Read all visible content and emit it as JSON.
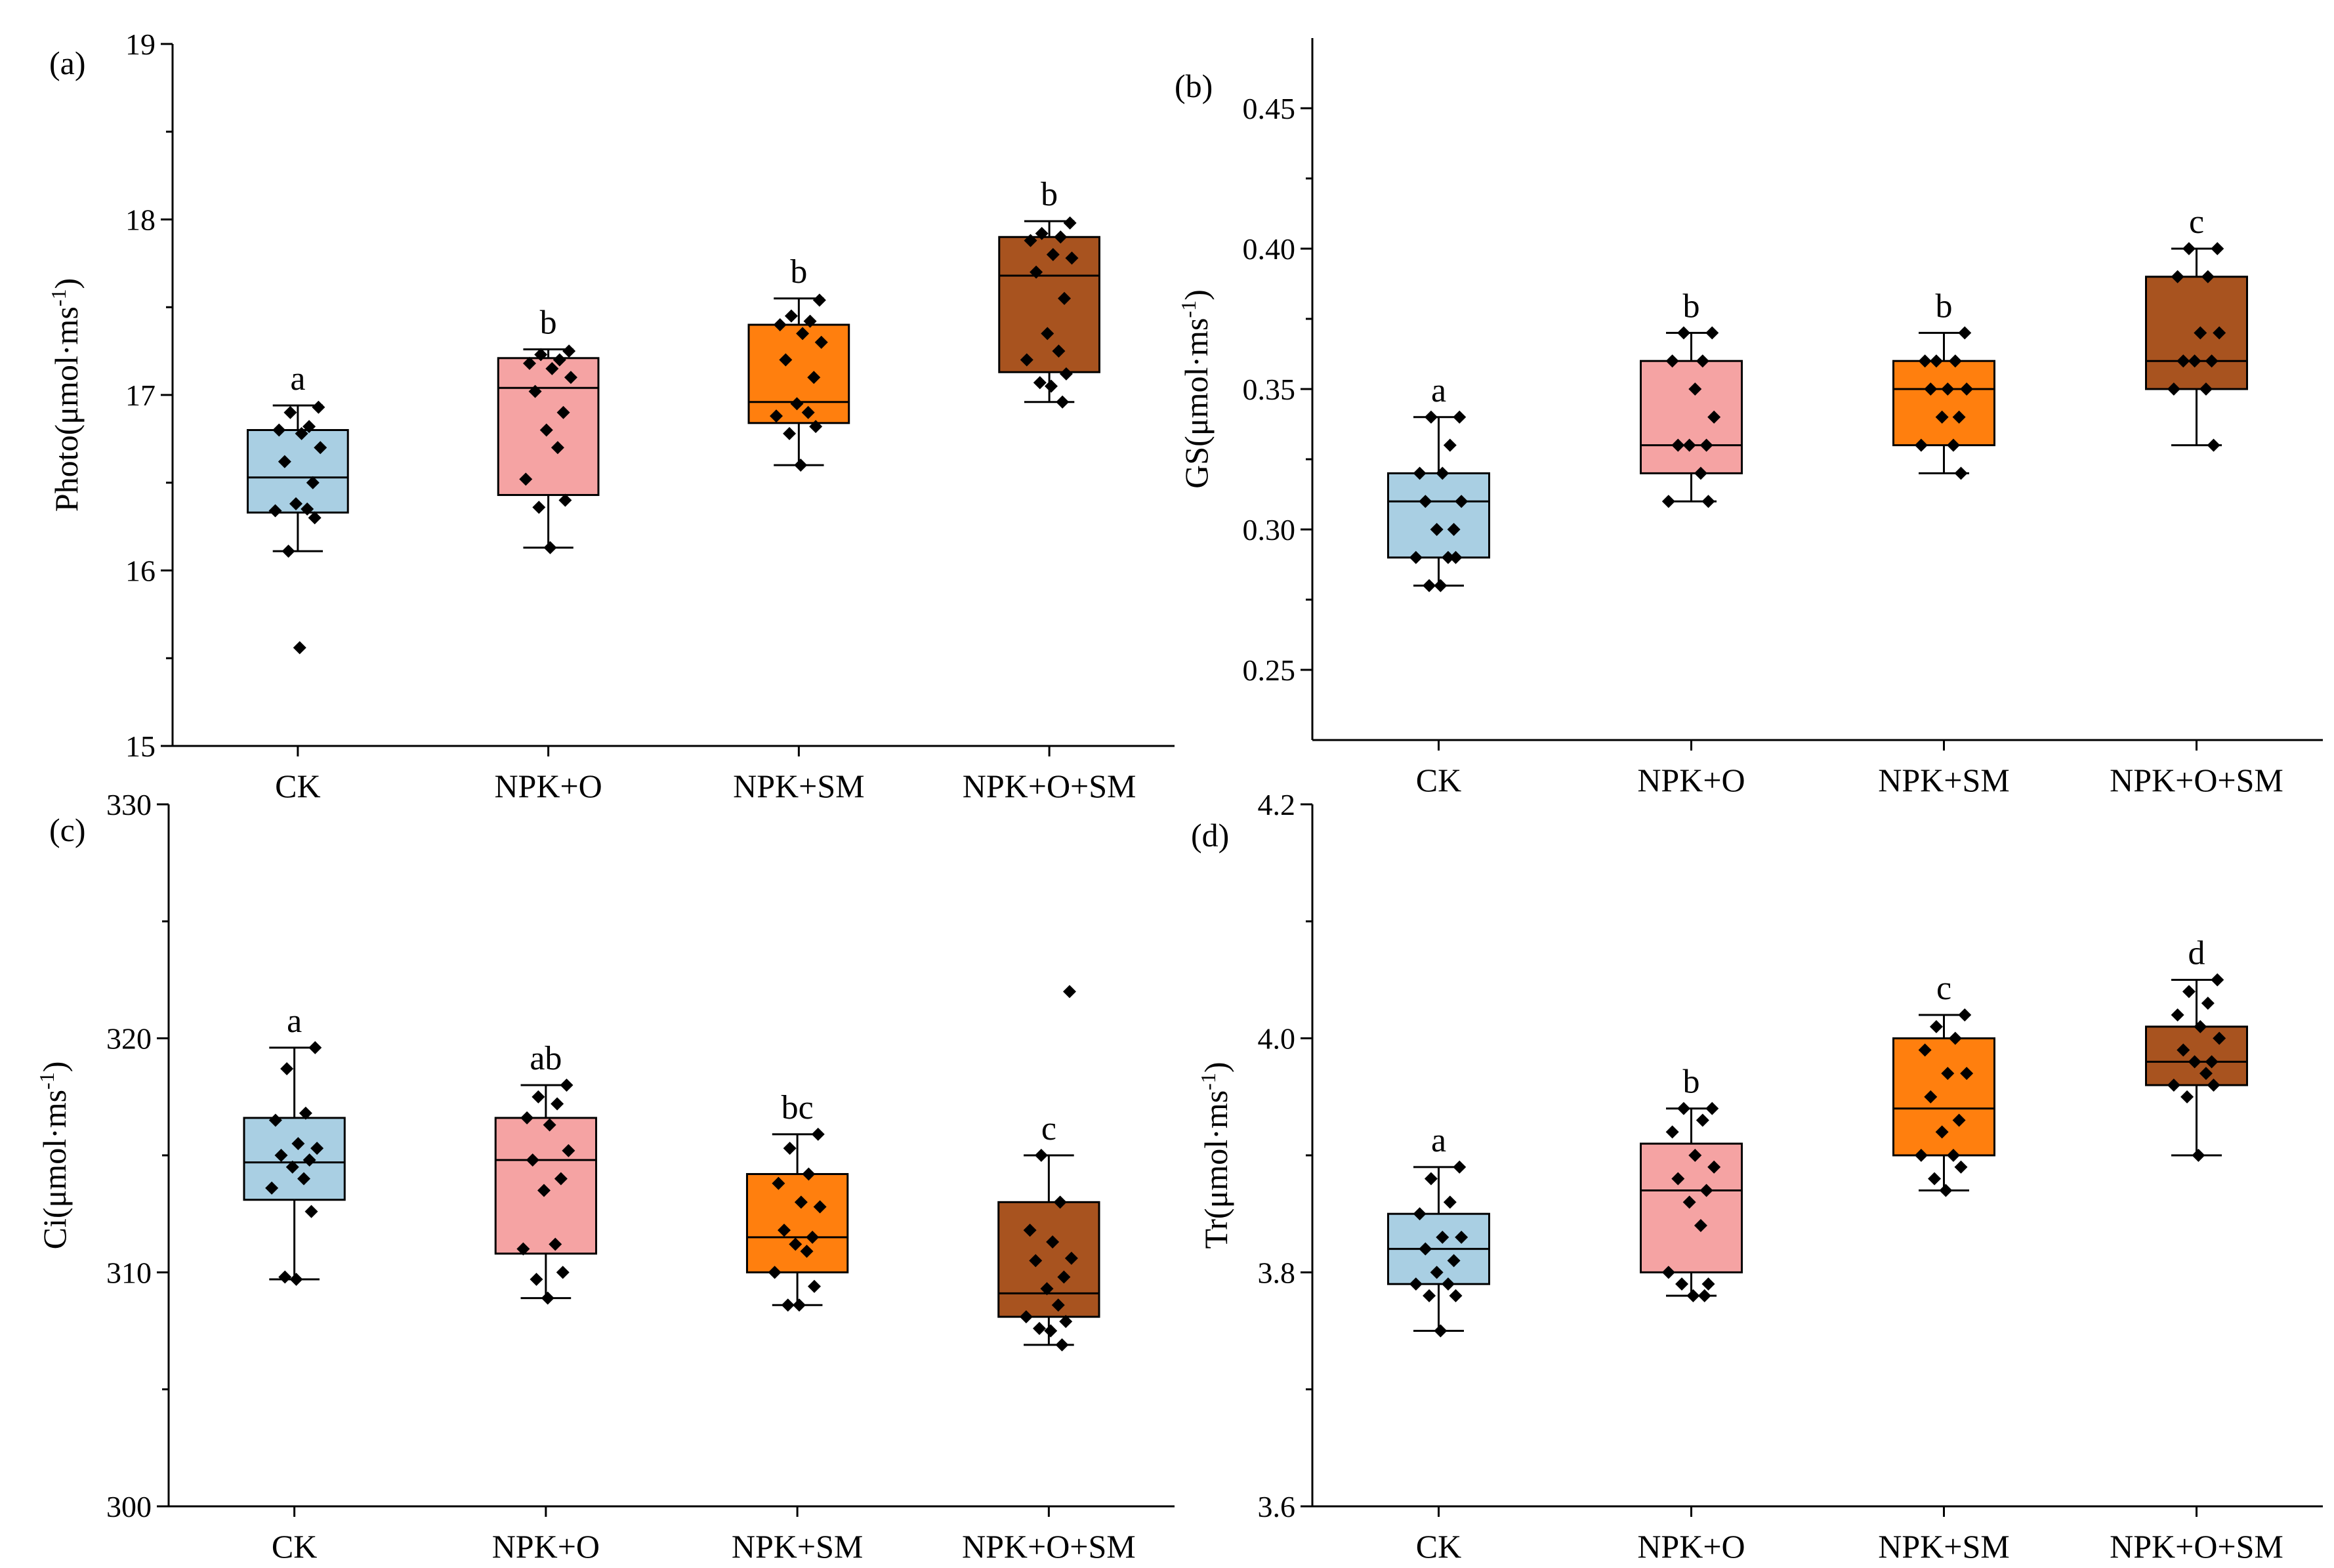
{
  "colors": {
    "CK": "#a9cfe3",
    "NPK+O": "#f5a3a3",
    "NPK+SM": "#ff7f0e",
    "NPK+O+SM": "#a8531f",
    "points": "#000000",
    "axis": "#000000"
  },
  "chart_data": [
    {
      "type": "box",
      "panel": "(a)",
      "ylabel": "Photo(μmol·ms",
      "ylabel_sup": "-1",
      "ylabel_close": ")",
      "ylim": [
        15,
        19
      ],
      "yticks": [
        15,
        16,
        17,
        18,
        19
      ],
      "categories": [
        "CK",
        "NPK+O",
        "NPK+SM",
        "NPK+O+SM"
      ],
      "boxes": [
        {
          "min": 16.11,
          "q1": 16.33,
          "median": 16.53,
          "q3": 16.8,
          "max": 16.94,
          "letter": "a",
          "points": [
            16.93,
            16.9,
            16.82,
            16.8,
            16.78,
            16.7,
            16.62,
            16.5,
            16.38,
            16.35,
            16.34,
            16.3,
            16.11,
            15.56
          ]
        },
        {
          "min": 16.13,
          "q1": 16.43,
          "median": 17.04,
          "q3": 17.21,
          "max": 17.26,
          "letter": "b",
          "points": [
            17.25,
            17.23,
            17.2,
            17.18,
            17.15,
            17.1,
            17.02,
            16.9,
            16.8,
            16.7,
            16.52,
            16.4,
            16.36,
            16.13
          ]
        },
        {
          "min": 16.6,
          "q1": 16.84,
          "median": 16.96,
          "q3": 17.4,
          "max": 17.55,
          "letter": "b",
          "points": [
            17.54,
            17.45,
            17.42,
            17.4,
            17.35,
            17.3,
            17.2,
            17.1,
            16.95,
            16.9,
            16.88,
            16.82,
            16.78,
            16.6
          ]
        },
        {
          "min": 16.96,
          "q1": 17.13,
          "median": 17.68,
          "q3": 17.9,
          "max": 17.99,
          "letter": "b",
          "points": [
            17.98,
            17.92,
            17.9,
            17.88,
            17.8,
            17.78,
            17.7,
            17.55,
            17.35,
            17.25,
            17.2,
            17.12,
            17.07,
            17.05,
            16.96
          ]
        }
      ]
    },
    {
      "type": "box",
      "panel": "(b)",
      "ylabel": "GS(μmol·ms",
      "ylabel_sup": "-1",
      "ylabel_close": ")",
      "ylim": [
        0.225,
        0.475
      ],
      "yticks": [
        0.25,
        0.3,
        0.35,
        0.4,
        0.45
      ],
      "ytick_labels": [
        "0.25",
        "0.30",
        "0.35",
        "0.40",
        "0.45"
      ],
      "categories": [
        "CK",
        "NPK+O",
        "NPK+SM",
        "NPK+O+SM"
      ],
      "boxes": [
        {
          "min": 0.28,
          "q1": 0.29,
          "median": 0.31,
          "q3": 0.32,
          "max": 0.34,
          "letter": "a",
          "points": [
            0.34,
            0.34,
            0.33,
            0.32,
            0.32,
            0.31,
            0.31,
            0.3,
            0.3,
            0.29,
            0.29,
            0.29,
            0.28,
            0.28
          ]
        },
        {
          "min": 0.31,
          "q1": 0.32,
          "median": 0.33,
          "q3": 0.36,
          "max": 0.37,
          "letter": "b",
          "points": [
            0.37,
            0.37,
            0.36,
            0.36,
            0.35,
            0.34,
            0.33,
            0.33,
            0.33,
            0.32,
            0.31,
            0.31
          ]
        },
        {
          "min": 0.32,
          "q1": 0.33,
          "median": 0.35,
          "q3": 0.36,
          "max": 0.37,
          "letter": "b",
          "points": [
            0.37,
            0.36,
            0.36,
            0.36,
            0.35,
            0.35,
            0.35,
            0.34,
            0.34,
            0.33,
            0.33,
            0.32
          ]
        },
        {
          "min": 0.33,
          "q1": 0.35,
          "median": 0.36,
          "q3": 0.39,
          "max": 0.4,
          "letter": "c",
          "points": [
            0.4,
            0.4,
            0.39,
            0.39,
            0.37,
            0.37,
            0.36,
            0.36,
            0.36,
            0.35,
            0.35,
            0.33
          ]
        }
      ]
    },
    {
      "type": "box",
      "panel": "(c)",
      "ylabel": "Ci(μmol·ms",
      "ylabel_sup": "-1",
      "ylabel_close": ")",
      "ylim": [
        300,
        330
      ],
      "yticks": [
        300,
        310,
        320,
        330
      ],
      "categories": [
        "CK",
        "NPK+O",
        "NPK+SM",
        "NPK+O+SM"
      ],
      "boxes": [
        {
          "min": 309.7,
          "q1": 313.1,
          "median": 314.7,
          "q3": 316.6,
          "max": 319.6,
          "letter": "a",
          "points": [
            319.6,
            318.7,
            316.8,
            316.5,
            315.5,
            315.3,
            315.0,
            314.8,
            314.5,
            314.0,
            313.6,
            312.6,
            309.8,
            309.7
          ]
        },
        {
          "min": 308.9,
          "q1": 310.8,
          "median": 314.8,
          "q3": 316.6,
          "max": 318.0,
          "letter": "ab",
          "points": [
            318.0,
            317.5,
            317.2,
            316.6,
            316.3,
            315.2,
            314.8,
            314.0,
            313.5,
            311.2,
            311.0,
            310.0,
            309.7,
            308.9
          ]
        },
        {
          "min": 308.6,
          "q1": 310.0,
          "median": 311.5,
          "q3": 314.2,
          "max": 315.9,
          "letter": "bc",
          "points": [
            315.9,
            315.3,
            314.2,
            313.8,
            313.0,
            312.8,
            311.8,
            311.5,
            311.2,
            310.9,
            310.0,
            309.4,
            308.6,
            308.6
          ]
        },
        {
          "min": 306.9,
          "q1": 308.1,
          "median": 309.1,
          "q3": 313.0,
          "max": 315.0,
          "letter": "c",
          "points": [
            322.0,
            315.0,
            313.0,
            311.8,
            311.3,
            310.6,
            310.5,
            309.8,
            309.3,
            308.6,
            308.1,
            307.9,
            307.6,
            307.5,
            306.9
          ]
        }
      ]
    },
    {
      "type": "box",
      "panel": "(d)",
      "ylabel": "Tr(μmol·ms",
      "ylabel_sup": "-1",
      "ylabel_close": ")",
      "ylim": [
        3.6,
        4.2
      ],
      "yticks": [
        3.6,
        3.8,
        4.0,
        4.2
      ],
      "ytick_labels": [
        "3.6",
        "3.8",
        "4.0",
        "4.2"
      ],
      "categories": [
        "CK",
        "NPK+O",
        "NPK+SM",
        "NPK+O+SM"
      ],
      "boxes": [
        {
          "min": 3.75,
          "q1": 3.79,
          "median": 3.82,
          "q3": 3.85,
          "max": 3.89,
          "letter": "a",
          "points": [
            3.89,
            3.88,
            3.86,
            3.85,
            3.83,
            3.83,
            3.82,
            3.81,
            3.8,
            3.79,
            3.79,
            3.78,
            3.78,
            3.75
          ]
        },
        {
          "min": 3.78,
          "q1": 3.8,
          "median": 3.87,
          "q3": 3.91,
          "max": 3.94,
          "letter": "b",
          "points": [
            3.94,
            3.94,
            3.93,
            3.92,
            3.9,
            3.89,
            3.88,
            3.87,
            3.86,
            3.84,
            3.8,
            3.79,
            3.79,
            3.78,
            3.78
          ]
        },
        {
          "min": 3.87,
          "q1": 3.9,
          "median": 3.94,
          "q3": 4.0,
          "max": 4.02,
          "letter": "c",
          "points": [
            4.02,
            4.01,
            4.0,
            3.99,
            3.97,
            3.97,
            3.95,
            3.93,
            3.92,
            3.9,
            3.9,
            3.89,
            3.88,
            3.87
          ]
        },
        {
          "min": 3.9,
          "q1": 3.96,
          "median": 3.98,
          "q3": 4.01,
          "max": 4.05,
          "letter": "d",
          "points": [
            4.05,
            4.04,
            4.03,
            4.02,
            4.01,
            4.0,
            3.99,
            3.98,
            3.98,
            3.97,
            3.96,
            3.96,
            3.95,
            3.9
          ]
        }
      ]
    }
  ]
}
